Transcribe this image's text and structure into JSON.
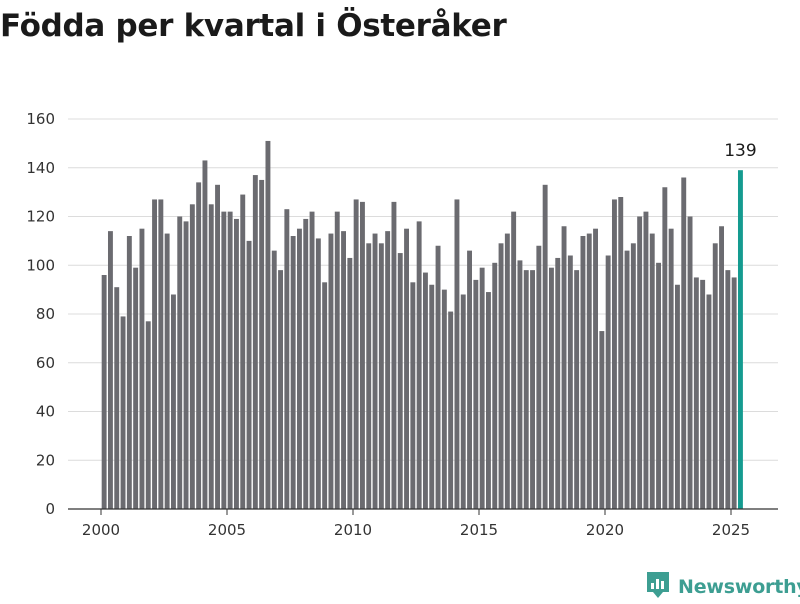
{
  "title": "Födda per kvartal i Österåker",
  "brand": {
    "name": "Newsworthy",
    "logo_icon": "newsworthy-logo-icon",
    "color": "#3d9e92"
  },
  "chart_data": {
    "type": "bar",
    "title": "Födda per kvartal i Österåker",
    "xlabel": "",
    "ylabel": "",
    "ylim": [
      0,
      160
    ],
    "yticks": [
      0,
      20,
      40,
      60,
      80,
      100,
      120,
      140,
      160
    ],
    "xticks": [
      "2000",
      "2005",
      "2010",
      "2015",
      "2020",
      "2025"
    ],
    "x_start_year": 2000,
    "periods_per_year": 4,
    "grid": true,
    "bar_color": "#6b6b70",
    "highlight_color": "#149b90",
    "highlight_label": "139",
    "values": [
      96,
      114,
      91,
      79,
      112,
      99,
      115,
      77,
      127,
      127,
      113,
      88,
      120,
      118,
      125,
      134,
      143,
      125,
      133,
      122,
      122,
      119,
      129,
      110,
      137,
      135,
      151,
      106,
      98,
      123,
      112,
      115,
      119,
      122,
      111,
      93,
      113,
      122,
      114,
      103,
      127,
      126,
      109,
      113,
      109,
      114,
      126,
      105,
      115,
      93,
      118,
      97,
      92,
      108,
      90,
      81,
      127,
      88,
      106,
      94,
      99,
      89,
      101,
      109,
      113,
      122,
      102,
      98,
      98,
      108,
      133,
      99,
      103,
      116,
      104,
      98,
      112,
      113,
      115,
      73,
      104,
      127,
      128,
      106,
      109,
      120,
      122,
      113,
      101,
      132,
      115,
      92,
      136,
      120,
      95,
      94,
      88,
      109,
      116,
      98,
      95,
      139
    ]
  }
}
